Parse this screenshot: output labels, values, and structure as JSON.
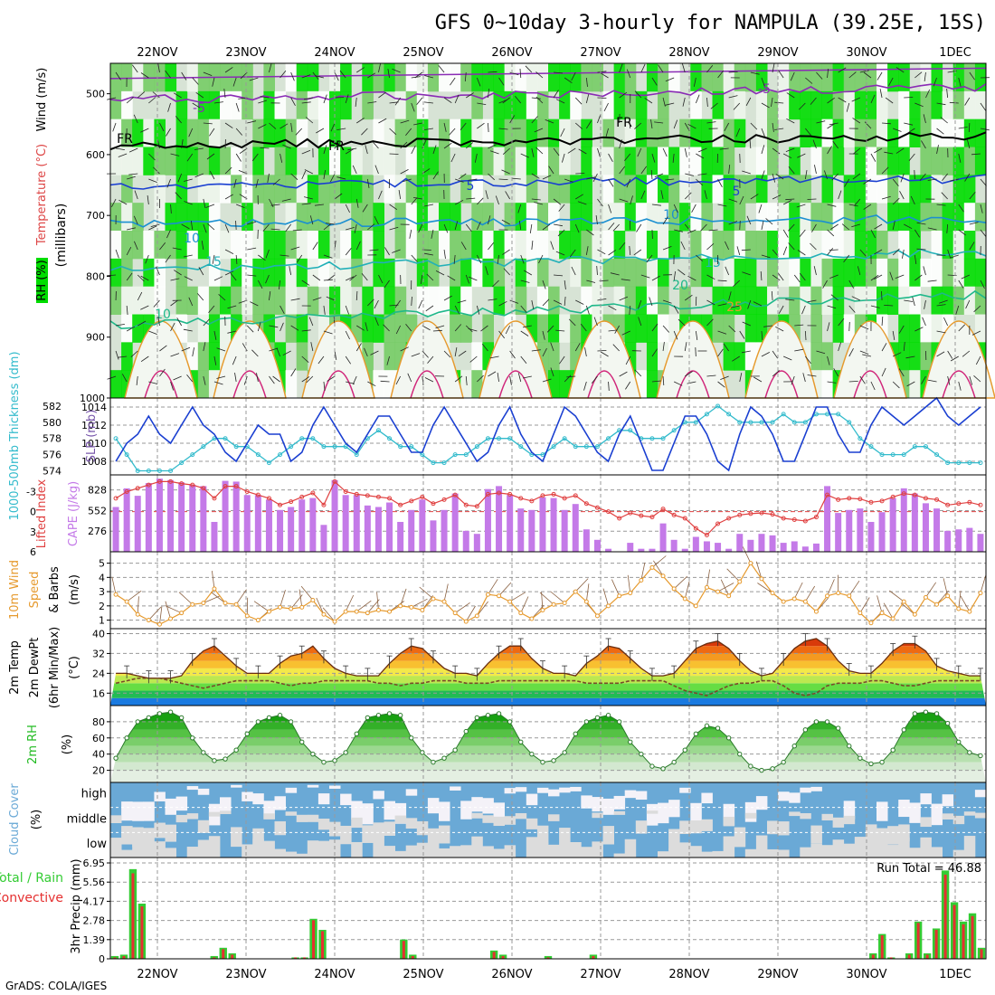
{
  "title": "GFS 0~10day 3-hourly for NAMPULA (39.25E, 15S)",
  "credit": "GrADS: COLA/IGES",
  "colors": {
    "rh_green": "#00dd00",
    "rh_light": "#e6f2e6",
    "temperature_label": "#dd4444",
    "rh_label": "#00aa00",
    "slp_line": "#1a3fd1",
    "thickness_line": "#33bbcc",
    "cape_bar": "#c47ae8",
    "lifted_line": "#e04040",
    "wind_speed": "#e69a2e",
    "temp_line": "#6a2e10",
    "dewpt_line": "#7a4a2a",
    "rh2m": "#22bb22",
    "cloud": "#6aa9d6",
    "rain_total": "#33cc33",
    "rain_convective": "#e53030"
  },
  "chart_data": [
    {
      "type": "contour",
      "name": "upper-air",
      "xticks": [
        "22NOV",
        "23NOV",
        "24NOV",
        "25NOV",
        "26NOV",
        "27NOV",
        "28NOV",
        "29NOV",
        "30NOV",
        "1DEC"
      ],
      "ylabel_parts": {
        "rh": "RH (%)",
        "temperature": "Temperature (°C)",
        "wind": "Wind (m/s)",
        "unit": "(millibars)"
      },
      "yticks": [
        500,
        600,
        700,
        800,
        900,
        1000
      ],
      "ylim": [
        450,
        1000
      ],
      "contour_labels": [
        "-5",
        "-5",
        "FR",
        "FR",
        "FR",
        "5",
        "5",
        "10",
        "10",
        "15",
        "15",
        "20",
        "25",
        "10"
      ],
      "isotherms": [
        {
          "label": "-5",
          "p_start": 510,
          "p_end": 490
        },
        {
          "label": "FR",
          "p_start": 585,
          "p_end": 570
        },
        {
          "label": "5",
          "p_start": 650,
          "p_end": 640
        },
        {
          "label": "10",
          "p_start": 715,
          "p_end": 705
        },
        {
          "label": "15",
          "p_start": 790,
          "p_end": 760
        },
        {
          "label": "20",
          "p_start": 880,
          "p_end": 830
        }
      ]
    },
    {
      "type": "line",
      "name": "slp-thickness",
      "ylabel_left": "1000-500mb Thickness (dm)",
      "ylabel_right": "SLP (mb)",
      "yticks_left": [
        574,
        576,
        578,
        580,
        582
      ],
      "yticks_right": [
        1008,
        1010,
        1012,
        1014
      ],
      "ylim_left": [
        573.5,
        583
      ],
      "ylim_right": [
        1006.5,
        1015
      ],
      "series": [
        {
          "name": "SLP",
          "values": [
            1008,
            1010,
            1011,
            1013,
            1011,
            1010,
            1012,
            1014,
            1012,
            1011,
            1009,
            1008,
            1010,
            1012,
            1011,
            1011,
            1008,
            1009,
            1012,
            1014,
            1012,
            1010,
            1009,
            1011,
            1013,
            1013,
            1011,
            1009,
            1009,
            1012,
            1014,
            1012,
            1010,
            1008,
            1009,
            1012,
            1014,
            1011,
            1009,
            1008,
            1011,
            1014,
            1013,
            1011,
            1009,
            1008,
            1011,
            1013,
            1010,
            1007,
            1007,
            1010,
            1013,
            1013,
            1011,
            1008,
            1007,
            1011,
            1014,
            1013,
            1011,
            1008,
            1008,
            1011,
            1014,
            1014,
            1011,
            1009,
            1009,
            1012,
            1014,
            1013,
            1012,
            1013,
            1014,
            1015,
            1013,
            1012,
            1013,
            1014
          ]
        },
        {
          "name": "Thickness",
          "values": [
            578,
            576,
            574,
            574,
            574,
            574,
            575,
            576,
            577,
            578,
            578,
            577,
            577,
            576,
            575,
            576,
            577,
            578,
            578,
            577,
            577,
            577,
            576,
            578,
            579,
            578,
            577,
            577,
            576,
            575,
            575,
            576,
            576,
            577,
            578,
            578,
            578,
            577,
            576,
            576,
            577,
            578,
            577,
            577,
            577,
            578,
            579,
            579,
            578,
            578,
            578,
            579,
            580,
            580,
            581,
            582,
            581,
            580,
            580,
            580,
            580,
            581,
            580,
            580,
            581,
            581,
            581,
            580,
            578,
            577,
            576,
            576,
            576,
            577,
            577,
            576,
            575,
            575,
            575,
            575
          ]
        }
      ]
    },
    {
      "type": "bar",
      "name": "cape-lifted",
      "ylabel_left": "Lifted Index",
      "ylabel_right": "CAPE (J/kg)",
      "yticks_left": [
        -3,
        0,
        3,
        6
      ],
      "yticks_right": [
        276,
        552,
        828
      ],
      "ylim_right": [
        0,
        1030
      ],
      "ylim_left": [
        6,
        -5.5
      ],
      "series": [
        {
          "name": "CAPE",
          "values": [
            600,
            850,
            750,
            920,
            980,
            960,
            930,
            900,
            880,
            400,
            950,
            940,
            760,
            760,
            700,
            560,
            600,
            700,
            720,
            360,
            960,
            760,
            760,
            620,
            600,
            660,
            400,
            560,
            700,
            420,
            560,
            780,
            280,
            240,
            840,
            880,
            760,
            580,
            560,
            730,
            720,
            560,
            640,
            300,
            160,
            40,
            0,
            120,
            40,
            40,
            380,
            160,
            40,
            200,
            140,
            120,
            40,
            240,
            160,
            240,
            220,
            120,
            140,
            70,
            110,
            880,
            520,
            560,
            580,
            400,
            530,
            720,
            850,
            780,
            650,
            580,
            280,
            300,
            320,
            240
          ]
        },
        {
          "name": "LI",
          "values": [
            -2.0,
            -3.0,
            -3.5,
            -4.0,
            -4.5,
            -4.5,
            -4.2,
            -4.0,
            -3.5,
            -2.0,
            -3.8,
            -3.8,
            -3.0,
            -2.5,
            -2.0,
            -1.0,
            -1.5,
            -2.2,
            -2.8,
            -1.0,
            -4.5,
            -3.0,
            -2.6,
            -2.4,
            -2.2,
            -2.0,
            -1.0,
            -1.6,
            -2.2,
            -1.2,
            -1.8,
            -2.5,
            -1.0,
            -0.8,
            -2.6,
            -2.8,
            -2.6,
            -2.0,
            -1.6,
            -2.4,
            -2.6,
            -2.0,
            -2.4,
            -1.2,
            -0.6,
            0.0,
            1.0,
            0.2,
            0.6,
            0.8,
            -0.4,
            0.5,
            1.0,
            2.5,
            3.5,
            1.8,
            1.0,
            0.5,
            0.3,
            0.2,
            0.4,
            1.0,
            1.2,
            1.4,
            0.8,
            -2.5,
            -1.8,
            -2.0,
            -1.9,
            -1.4,
            -1.6,
            -2.2,
            -2.7,
            -2.5,
            -2.0,
            -1.8,
            -1.0,
            -1.2,
            -1.4,
            -1.0
          ]
        }
      ]
    },
    {
      "type": "line",
      "name": "wind-10m",
      "ylabel": "10m Wind Speed (m/s) & Barbs",
      "yticks": [
        1,
        2,
        3,
        4,
        5
      ],
      "ylim": [
        0.4,
        5.8
      ],
      "series": [
        {
          "name": "Speed",
          "values": [
            2.8,
            2.3,
            1.4,
            1.0,
            0.7,
            1.1,
            1.5,
            2.1,
            2.2,
            3.2,
            2.2,
            2.1,
            1.3,
            1.0,
            1.6,
            1.9,
            1.8,
            1.9,
            2.4,
            1.4,
            0.9,
            1.6,
            1.6,
            1.5,
            1.7,
            1.6,
            2.0,
            1.9,
            1.7,
            2.5,
            2.3,
            1.5,
            0.9,
            1.3,
            2.8,
            2.7,
            2.3,
            1.5,
            1.1,
            1.7,
            2.1,
            2.2,
            3.0,
            2.3,
            1.3,
            2.0,
            2.7,
            2.9,
            3.8,
            4.7,
            4.1,
            3.2,
            2.5,
            2.0,
            3.3,
            3.0,
            2.7,
            3.7,
            5.0,
            3.9,
            2.9,
            2.3,
            2.5,
            2.3,
            1.6,
            2.7,
            2.9,
            2.7,
            1.5,
            0.8,
            1.5,
            1.1,
            2.3,
            1.4,
            2.6,
            2.1,
            2.7,
            1.8,
            1.6,
            2.9
          ]
        }
      ]
    },
    {
      "type": "area",
      "name": "temp-2m",
      "ylabel": "2m Temp 2m DewPt (6hr Min/Max) (°C)",
      "yticks": [
        16,
        24,
        32,
        40
      ],
      "ylim": [
        11,
        42
      ],
      "series": [
        {
          "name": "Temp",
          "values": [
            24,
            24,
            23,
            22,
            22,
            22,
            23,
            29,
            33,
            35,
            31,
            27,
            24,
            24,
            24,
            28,
            31,
            32,
            35,
            30,
            26,
            24,
            23,
            23,
            23,
            28,
            32,
            35,
            34,
            30,
            26,
            24,
            24,
            23,
            28,
            32,
            35,
            35,
            30,
            26,
            24,
            24,
            23,
            28,
            31,
            35,
            34,
            30,
            26,
            23,
            23,
            24,
            29,
            34,
            36,
            37,
            34,
            29,
            25,
            23,
            24,
            29,
            34,
            37,
            38,
            35,
            29,
            25,
            24,
            24,
            28,
            33,
            36,
            36,
            33,
            27,
            25,
            24,
            23,
            23
          ]
        },
        {
          "name": "DewPt",
          "values": [
            20,
            21,
            22,
            22,
            22,
            21,
            20,
            19,
            18,
            19,
            20,
            21,
            21,
            21,
            21,
            20,
            19,
            20,
            20,
            21,
            21,
            21,
            21,
            21,
            20,
            20,
            19,
            20,
            20,
            21,
            21,
            21,
            20,
            20,
            20,
            21,
            21,
            21,
            21,
            21,
            21,
            21,
            21,
            20,
            20,
            20,
            20,
            21,
            21,
            21,
            21,
            19,
            17,
            16,
            15,
            17,
            19,
            20,
            20,
            21,
            21,
            19,
            16,
            15,
            16,
            19,
            20,
            20,
            20,
            21,
            21,
            20,
            19,
            19,
            20,
            21,
            21,
            21,
            21,
            21
          ]
        }
      ]
    },
    {
      "type": "area",
      "name": "rh-2m",
      "ylabel": "2m RH (%)",
      "yticks": [
        20,
        40,
        60,
        80
      ],
      "ylim": [
        5,
        100
      ],
      "series": [
        {
          "name": "RH",
          "values": [
            35,
            60,
            80,
            85,
            90,
            92,
            85,
            60,
            42,
            32,
            34,
            45,
            65,
            80,
            85,
            88,
            80,
            55,
            40,
            30,
            32,
            42,
            65,
            85,
            88,
            90,
            88,
            60,
            42,
            30,
            35,
            45,
            68,
            85,
            88,
            90,
            80,
            55,
            40,
            30,
            32,
            42,
            65,
            80,
            85,
            88,
            80,
            55,
            40,
            25,
            22,
            30,
            45,
            65,
            75,
            72,
            60,
            40,
            25,
            20,
            22,
            30,
            50,
            70,
            80,
            80,
            72,
            50,
            35,
            28,
            30,
            45,
            70,
            90,
            92,
            90,
            78,
            55,
            42,
            38
          ]
        }
      ]
    },
    {
      "type": "heatmap",
      "name": "cloud-cover",
      "ylabel": "Cloud Cover (%)",
      "levels": [
        "high",
        "middle",
        "low"
      ]
    },
    {
      "type": "bar",
      "name": "precip",
      "ylabel": "3hr Precip (mm)",
      "ylabel_left": "Total / Rain",
      "ylabel_left2": "Convective",
      "run_total": "Run Total = 46.88",
      "yticks": [
        0,
        1.39,
        2.78,
        4.17,
        5.56,
        6.95
      ],
      "ylim": [
        0,
        6.95
      ],
      "series": [
        {
          "name": "Total",
          "values": [
            0.2,
            0.3,
            6.5,
            4.0,
            0,
            0,
            0,
            0,
            0,
            0,
            0,
            0.2,
            0.8,
            0.4,
            0,
            0,
            0,
            0,
            0,
            0,
            0.1,
            0.1,
            2.9,
            2.1,
            0,
            0,
            0,
            0,
            0,
            0,
            0,
            0,
            1.4,
            0.3,
            0,
            0,
            0,
            0,
            0,
            0,
            0,
            0,
            0.6,
            0.3,
            0,
            0,
            0,
            0,
            0.2,
            0,
            0,
            0,
            0,
            0.3,
            0,
            0,
            0,
            0,
            0,
            0,
            0,
            0,
            0,
            0,
            0,
            0,
            0,
            0,
            0,
            0,
            0,
            0,
            0,
            0,
            0,
            0,
            0,
            0,
            0,
            0,
            0,
            0,
            0,
            0,
            0.4,
            1.8,
            0.1,
            0,
            0.4,
            2.7,
            0.4,
            2.2,
            6.4,
            4.1,
            2.7,
            3.3,
            0.8
          ]
        },
        {
          "name": "Convective",
          "values": [
            0.1,
            0.2,
            6.2,
            3.8,
            0,
            0,
            0,
            0,
            0,
            0,
            0,
            0.1,
            0.7,
            0.3,
            0,
            0,
            0,
            0,
            0,
            0,
            0.1,
            0.1,
            2.8,
            2.0,
            0,
            0,
            0,
            0,
            0,
            0,
            0,
            0,
            1.3,
            0.2,
            0,
            0,
            0,
            0,
            0,
            0,
            0,
            0,
            0.5,
            0.2,
            0,
            0,
            0,
            0,
            0.1,
            0,
            0,
            0,
            0,
            0.2,
            0,
            0,
            0,
            0,
            0,
            0,
            0,
            0,
            0,
            0,
            0,
            0,
            0,
            0,
            0,
            0,
            0,
            0,
            0,
            0,
            0,
            0,
            0,
            0,
            0,
            0,
            0,
            0,
            0,
            0,
            0.3,
            1.7,
            0.1,
            0,
            0.3,
            2.6,
            0.3,
            2.1,
            6.1,
            3.9,
            2.5,
            3.1,
            0.7
          ]
        }
      ]
    }
  ]
}
